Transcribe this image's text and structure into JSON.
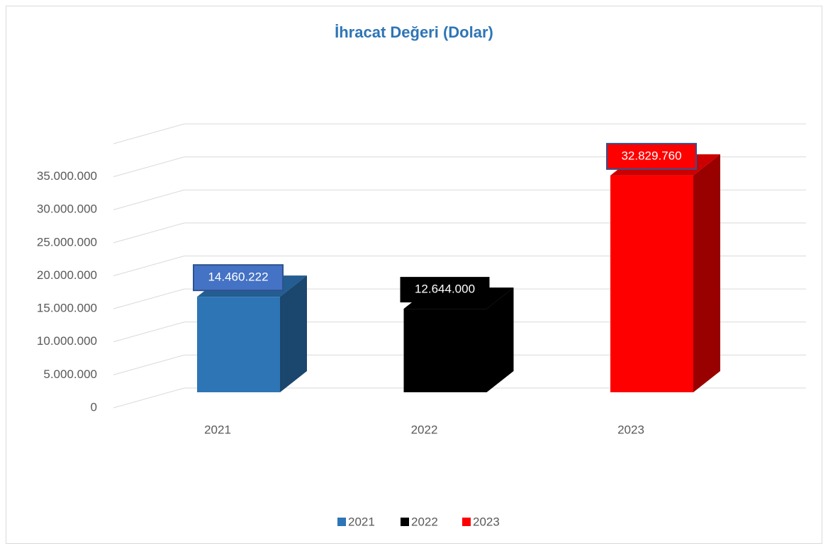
{
  "chart_data": {
    "type": "bar3d",
    "title": "İhracat Değeri (Dolar)",
    "categories": [
      "2021",
      "2022",
      "2023"
    ],
    "values": [
      14460222,
      12644000,
      32829760
    ],
    "value_labels": [
      "14.460.222",
      "12.644.000",
      "32.829.760"
    ],
    "colors": [
      "#2e75b6",
      "#000000",
      "#ff0000"
    ],
    "ylim": [
      0,
      40000000
    ],
    "yticks": [
      0,
      {
        "value": 5000000,
        "label": "5.000.000"
      },
      {
        "value": 10000000,
        "label": "10.000.000"
      },
      {
        "value": 15000000,
        "label": "15.000.000"
      },
      {
        "value": 20000000,
        "label": "20.000.000"
      },
      {
        "value": 25000000,
        "label": "25.000.000"
      },
      {
        "value": 30000000,
        "label": "30.000.000"
      },
      {
        "value": 35000000,
        "label": "35.000.000"
      }
    ],
    "grid": true,
    "legend": "bottom"
  }
}
